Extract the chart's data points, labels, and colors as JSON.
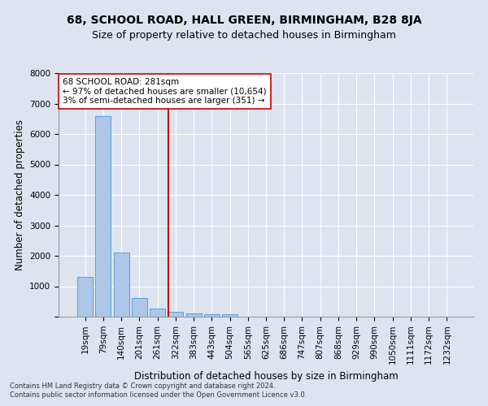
{
  "title": "68, SCHOOL ROAD, HALL GREEN, BIRMINGHAM, B28 8JA",
  "subtitle": "Size of property relative to detached houses in Birmingham",
  "xlabel": "Distribution of detached houses by size in Birmingham",
  "ylabel": "Number of detached properties",
  "footnote1": "Contains HM Land Registry data © Crown copyright and database right 2024.",
  "footnote2": "Contains public sector information licensed under the Open Government Licence v3.0.",
  "bar_labels": [
    "19sqm",
    "79sqm",
    "140sqm",
    "201sqm",
    "261sqm",
    "322sqm",
    "383sqm",
    "443sqm",
    "504sqm",
    "565sqm",
    "625sqm",
    "686sqm",
    "747sqm",
    "807sqm",
    "868sqm",
    "929sqm",
    "990sqm",
    "1050sqm",
    "1111sqm",
    "1172sqm",
    "1232sqm"
  ],
  "bar_values": [
    1300,
    6580,
    2100,
    620,
    270,
    150,
    110,
    75,
    75,
    0,
    0,
    0,
    0,
    0,
    0,
    0,
    0,
    0,
    0,
    0,
    0
  ],
  "bar_color": "#aec6e8",
  "bar_edge_color": "#5a9fd4",
  "vline_x": 4.62,
  "vline_color": "#cc0000",
  "annotation_text": "68 SCHOOL ROAD: 281sqm\n← 97% of detached houses are smaller (10,654)\n3% of semi-detached houses are larger (351) →",
  "annotation_box_color": "#ffffff",
  "annotation_box_edge": "#cc0000",
  "ylim": [
    0,
    8000
  ],
  "yticks": [
    0,
    1000,
    2000,
    3000,
    4000,
    5000,
    6000,
    7000,
    8000
  ],
  "bg_color": "#dde4f0",
  "plot_bg_color": "#dde4f0",
  "title_fontsize": 10,
  "subtitle_fontsize": 9,
  "xlabel_fontsize": 8.5,
  "ylabel_fontsize": 8.5,
  "tick_fontsize": 7.5,
  "annotation_fontsize": 7.5,
  "footnote_fontsize": 6
}
